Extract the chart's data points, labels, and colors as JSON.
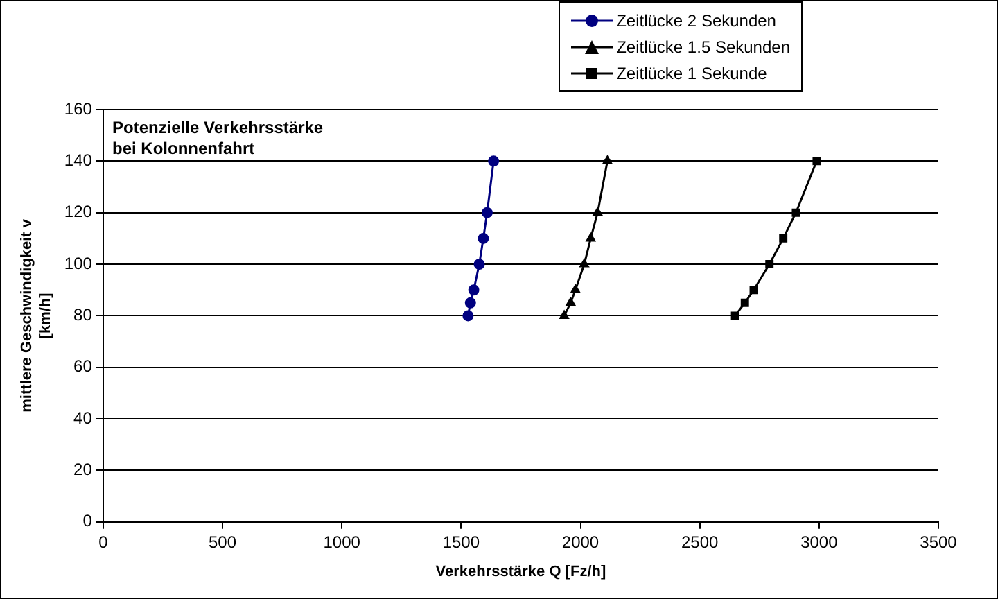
{
  "chart_data": {
    "type": "line",
    "title": "Potenzielle Verkehrsstärke\nbei Kolonnenfahrt",
    "xlabel": "Verkehrsstärke Q [Fz/h]",
    "ylabel": "mittlere Geschwindigkeit v\n[km/h]",
    "xlim": [
      0,
      3500
    ],
    "xticks": [
      0,
      500,
      1000,
      1500,
      2000,
      2500,
      3000,
      3500
    ],
    "ylim": [
      0,
      160
    ],
    "yticks": [
      0,
      20,
      40,
      60,
      80,
      100,
      120,
      140,
      160
    ],
    "grid": "y",
    "legend": "top right",
    "line_style": "solid",
    "series": [
      {
        "name": "Zeitlücke 2 Sekunden",
        "color": "#000080",
        "marker": "circle",
        "x": [
          1529,
          1539,
          1553,
          1576,
          1593,
          1609,
          1636
        ],
        "values": [
          80,
          85,
          90,
          100,
          110,
          120,
          140
        ]
      },
      {
        "name": "Zeitlücke 1.5 Sekunden",
        "color": "#000000",
        "marker": "triangle",
        "x": [
          1932,
          1959,
          1979,
          2016,
          2043,
          2072,
          2113
        ],
        "values": [
          80,
          85,
          90,
          100,
          110,
          120,
          140
        ]
      },
      {
        "name": "Zeitlücke 1 Sekunde",
        "color": "#000000",
        "marker": "square",
        "x": [
          2648,
          2689,
          2726,
          2792,
          2850,
          2903,
          2990
        ],
        "values": [
          80,
          85,
          90,
          100,
          110,
          120,
          140
        ]
      }
    ]
  }
}
